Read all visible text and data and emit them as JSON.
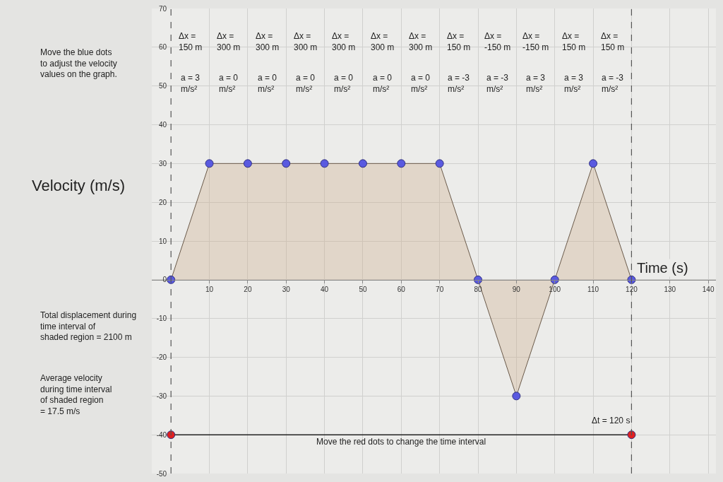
{
  "chart_data": {
    "type": "area",
    "ylabel": "Velocity (m/s)",
    "xlabel": "Time (s)",
    "x": [
      0,
      10,
      20,
      30,
      40,
      50,
      60,
      70,
      80,
      90,
      100,
      110,
      120
    ],
    "series": [
      {
        "color": "#5a5ae0",
        "values": [
          0,
          30,
          30,
          30,
          30,
          30,
          30,
          30,
          0,
          -30,
          0,
          30,
          0
        ]
      },
      {
        "type": "line",
        "color": "#e02020",
        "x": [
          0,
          120
        ],
        "values": [
          -40,
          -40
        ]
      }
    ],
    "xlim": [
      -5,
      142
    ],
    "ylim": [
      -50,
      70
    ],
    "xticks": [
      10,
      20,
      30,
      40,
      50,
      60,
      70,
      80,
      90,
      100,
      110,
      120,
      130,
      140
    ],
    "yticks": [
      -50,
      -40,
      -30,
      -20,
      -10,
      0,
      10,
      20,
      30,
      40,
      50,
      60,
      70
    ],
    "grid": true,
    "marker": "circle",
    "ref_lines": [
      {
        "axis": "x",
        "value": 0,
        "line_style": "dashed"
      },
      {
        "axis": "x",
        "value": 120,
        "line_style": "dashed"
      }
    ],
    "annotations": [
      "Δx =\n150 m",
      "Δx =\n300 m",
      "Δx =\n300 m",
      "Δx =\n300 m",
      "Δx =\n300 m",
      "Δx =\n300 m",
      "Δx =\n300 m",
      "Δx =\n150 m",
      "Δx =\n-150 m",
      "Δx =\n-150 m",
      "Δx =\n150 m",
      "Δx =\n150 m",
      "a = 3\nm/s²",
      "a = 0\nm/s²",
      "a = 0\nm/s²",
      "a = 0\nm/s²",
      "a = 0\nm/s²",
      "a = 0\nm/s²",
      "a = 0\nm/s²",
      "a = -3\nm/s²",
      "a = -3\nm/s²",
      "a = 3\nm/s²",
      "a = 3\nm/s²",
      "a = -3\nm/s²",
      "Δt = 120 s",
      "Move the red dots to change the time interval",
      "Move the blue dots\nto adjust the velocity\nvalues on the graph.",
      "Total displacement during\ntime interval of\nshaded region = 2100 m",
      "Average velocity\nduring time interval\nof shaded region\n= 17.5 m/s"
    ]
  }
}
